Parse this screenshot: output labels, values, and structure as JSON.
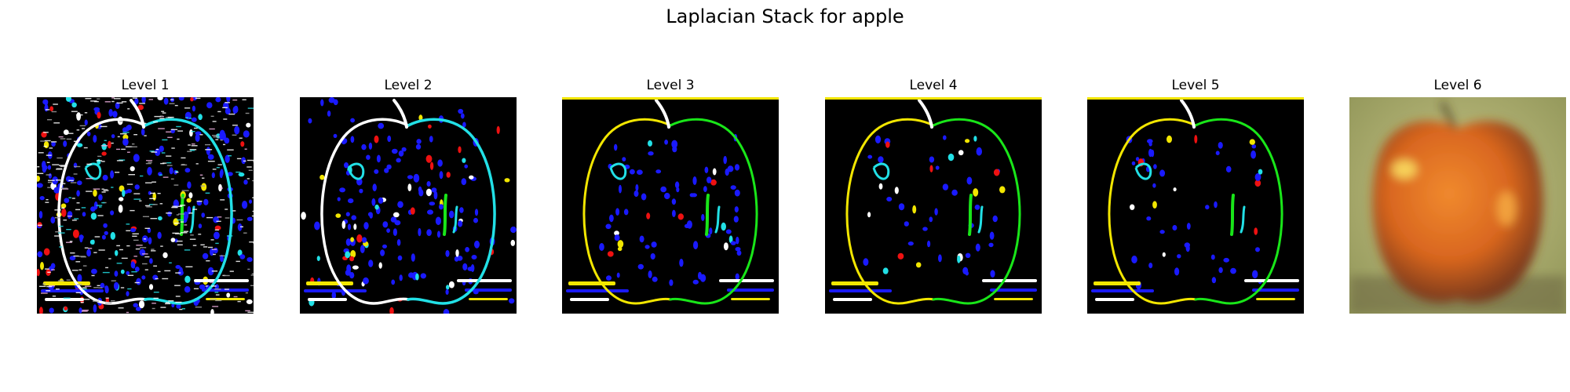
{
  "figure": {
    "title": "Laplacian Stack for apple",
    "panels": [
      {
        "label": "Level 1",
        "kind": "laplacian-noisy-edges"
      },
      {
        "label": "Level 2",
        "kind": "laplacian-edges-dots"
      },
      {
        "label": "Level 3",
        "kind": "laplacian-edges-dots"
      },
      {
        "label": "Level 4",
        "kind": "laplacian-edges-sparse"
      },
      {
        "label": "Level 5",
        "kind": "laplacian-edges-sparse"
      },
      {
        "label": "Level 6",
        "kind": "blurred-apple-photo"
      }
    ]
  },
  "colors": {
    "background": "#000000",
    "edge_green": "#19e619",
    "edge_yellow": "#f2e600",
    "edge_white": "#ffffff",
    "edge_cyan": "#22e0e6",
    "dot_blue": "#1a1aff",
    "dot_red": "#ee1111",
    "apple_orange": "#d9661f",
    "bg_olive": "#b7ba6e"
  }
}
